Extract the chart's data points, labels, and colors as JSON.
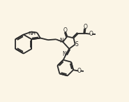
{
  "bg_color": "#fbf5e6",
  "bond_color": "#2a2a2a",
  "lw": 1.3,
  "figsize": [
    1.85,
    1.46
  ],
  "dpi": 100,
  "xlim": [
    0,
    10
  ],
  "ylim": [
    0,
    8
  ]
}
